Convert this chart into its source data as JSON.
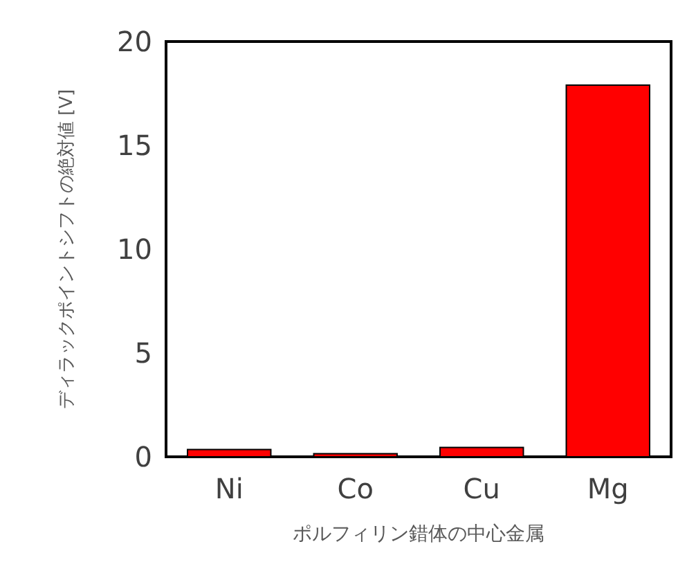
{
  "chart_data": {
    "type": "bar",
    "xlabel": "ポルフィリン錯体の中心金属",
    "ylabel": "ディラックポイントシフトの絶対値 [V]",
    "categories": [
      "Ni",
      "Co",
      "Cu",
      "Mg"
    ],
    "values": [
      0.35,
      0.15,
      0.45,
      17.9
    ],
    "color": "#ff0000",
    "ylim": [
      0,
      20
    ],
    "yticks": [
      0,
      5,
      10,
      15,
      20
    ],
    "grid": false
  }
}
